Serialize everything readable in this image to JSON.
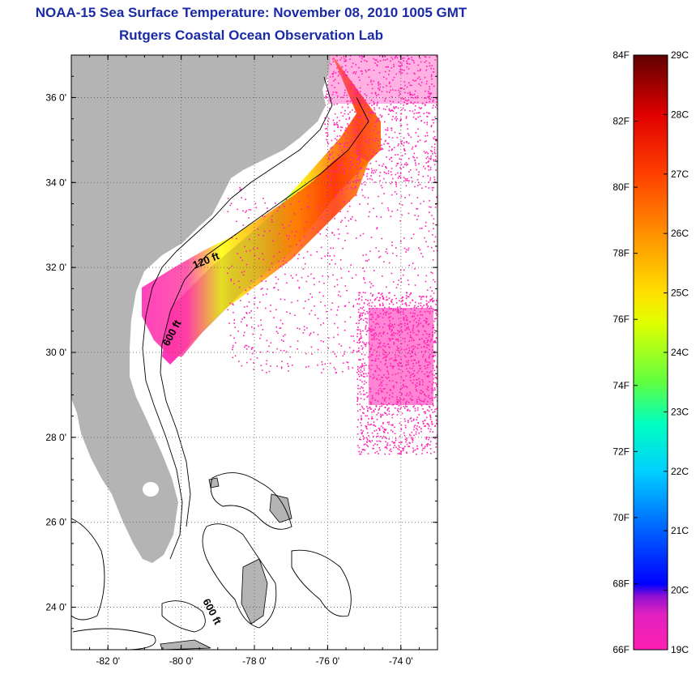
{
  "title": {
    "line1": "NOAA-15 Sea Surface Temperature:  November 08, 2010 1005 GMT",
    "line2": "Rutgers Coastal Ocean Observation Lab"
  },
  "map": {
    "lon_range": [
      -83,
      -73
    ],
    "lat_range": [
      23,
      37
    ],
    "lat_ticks": [
      {
        "value": 24,
        "label": "24 0'"
      },
      {
        "value": 26,
        "label": "26 0'"
      },
      {
        "value": 28,
        "label": "28 0'"
      },
      {
        "value": 30,
        "label": "30 0'"
      },
      {
        "value": 32,
        "label": "32 0'"
      },
      {
        "value": 34,
        "label": "34 0'"
      },
      {
        "value": 36,
        "label": "36 0'"
      }
    ],
    "lon_ticks": [
      {
        "value": -82,
        "label": "-82 0'"
      },
      {
        "value": -80,
        "label": "-80 0'"
      },
      {
        "value": -78,
        "label": "-78 0'"
      },
      {
        "value": -76,
        "label": "-76 0'"
      },
      {
        "value": -74,
        "label": "-74 0'"
      }
    ],
    "contour_labels": [
      "120 ft",
      "600 ft",
      "600 ft"
    ],
    "colors": {
      "land": "#b4b4b4",
      "ocean_background": "#ffffff",
      "gridline": "#555555"
    }
  },
  "colorbar": {
    "fahrenheit_labels": [
      "84F",
      "82F",
      "80F",
      "78F",
      "76F",
      "74F",
      "72F",
      "70F",
      "68F",
      "66F"
    ],
    "celsius_labels": [
      "29C",
      "28C",
      "27C",
      "26C",
      "25C",
      "24C",
      "23C",
      "22C",
      "21C",
      "20C",
      "19C"
    ],
    "range_f": [
      66,
      84
    ],
    "range_c": [
      19,
      29
    ],
    "colormap": [
      "#ff20b0",
      "#9010d0",
      "#0000ff",
      "#0070ff",
      "#00e0ff",
      "#30ff90",
      "#c0ff00",
      "#ffff00",
      "#ffa000",
      "#ff4000",
      "#e00000",
      "#700000"
    ]
  }
}
